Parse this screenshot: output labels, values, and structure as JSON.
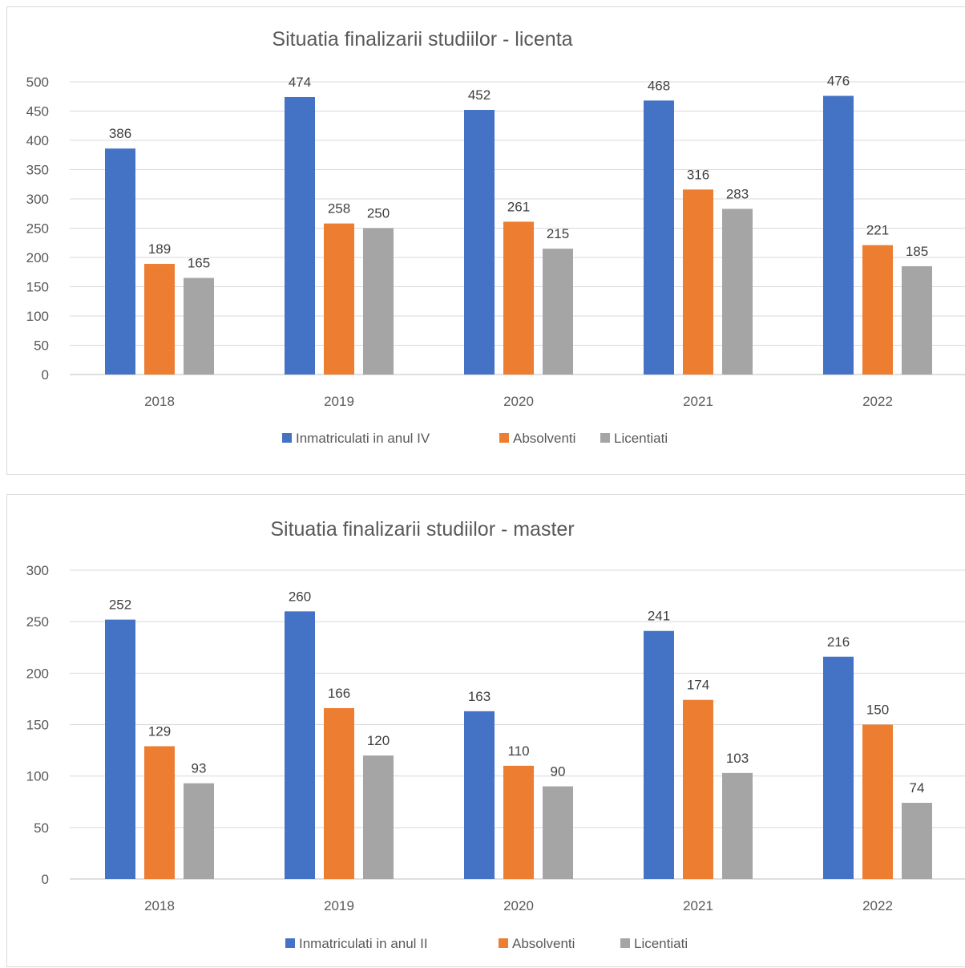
{
  "chart_data": [
    {
      "type": "bar",
      "title": "Situatia finalizarii studiilor - licenta",
      "categories": [
        "2018",
        "2019",
        "2020",
        "2021",
        "2022"
      ],
      "series": [
        {
          "name": "Inmatriculati in anul IV",
          "color": "#4472C4",
          "values": [
            386,
            474,
            452,
            468,
            476
          ]
        },
        {
          "name": "Absolventi",
          "color": "#ED7D31",
          "values": [
            189,
            258,
            261,
            316,
            221
          ]
        },
        {
          "name": "Licentiati",
          "color": "#A5A5A5",
          "values": [
            165,
            250,
            215,
            283,
            185
          ]
        }
      ],
      "ylim": [
        0,
        500
      ],
      "yticks": [
        0,
        50,
        100,
        150,
        200,
        250,
        300,
        350,
        400,
        450,
        500
      ],
      "grid": true,
      "legend_position": "bottom"
    },
    {
      "type": "bar",
      "title": "Situatia finalizarii studiilor - master",
      "categories": [
        "2018",
        "2019",
        "2020",
        "2021",
        "2022"
      ],
      "series": [
        {
          "name": "Inmatriculati in anul II",
          "color": "#4472C4",
          "values": [
            252,
            260,
            163,
            241,
            216
          ]
        },
        {
          "name": "Absolventi",
          "color": "#ED7D31",
          "values": [
            129,
            166,
            110,
            174,
            150
          ]
        },
        {
          "name": "Licentiati",
          "color": "#A5A5A5",
          "values": [
            93,
            120,
            90,
            103,
            74
          ]
        }
      ],
      "ylim": [
        0,
        300
      ],
      "yticks": [
        0,
        50,
        100,
        150,
        200,
        250,
        300
      ],
      "grid": true,
      "legend_position": "bottom"
    }
  ]
}
